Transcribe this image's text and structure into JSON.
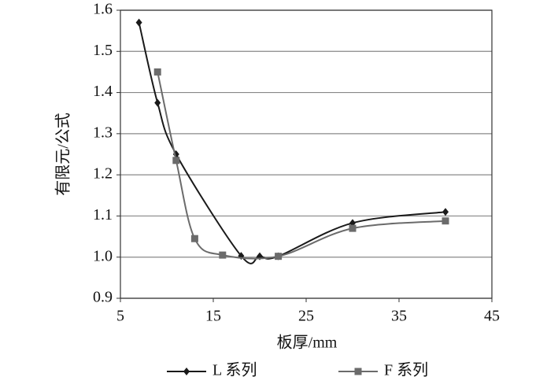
{
  "chart_data": {
    "type": "line",
    "x_label": "板厚/mm",
    "y_label": "有限元/公式",
    "xlim": [
      5,
      45
    ],
    "xticks": [
      5,
      15,
      25,
      35,
      45
    ],
    "ylim": [
      0.9,
      1.6
    ],
    "yticks": [
      0.9,
      {
        "value": 1,
        "label": "1.0"
      },
      1.1,
      1.2,
      1.3,
      1.4,
      1.5,
      1.6
    ],
    "grid": true,
    "legend": "bottom",
    "series": [
      {
        "name": "L 系列",
        "color": "#1a1a1a",
        "marker": "diamond",
        "x": [
          7,
          9,
          11,
          18,
          20,
          22,
          30,
          40
        ],
        "values": [
          1.57,
          1.375,
          1.25,
          1.003,
          1.002,
          1.002,
          1.083,
          1.11
        ]
      },
      {
        "name": "F 系列",
        "color": "#6b6b6b",
        "marker": "square",
        "x": [
          9,
          11,
          13,
          16,
          22,
          30,
          40
        ],
        "values": [
          1.45,
          1.235,
          1.045,
          1.005,
          1.002,
          1.07,
          1.088
        ]
      }
    ]
  }
}
